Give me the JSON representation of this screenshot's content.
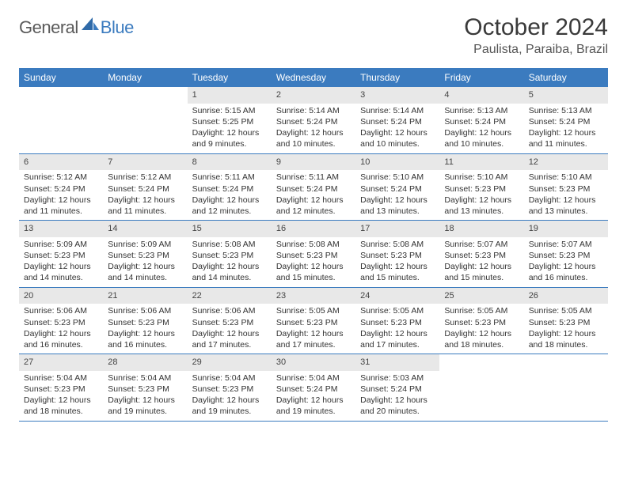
{
  "logo": {
    "general": "General",
    "blue": "Blue"
  },
  "title": "October 2024",
  "location": "Paulista, Paraiba, Brazil",
  "colors": {
    "header_bg": "#3b7bbf",
    "header_text": "#ffffff",
    "daynum_bg": "#e8e8e8",
    "border": "#3b7bbf",
    "body_text": "#333333",
    "logo_gray": "#5a5a5a",
    "logo_blue": "#3b7bbf",
    "page_bg": "#ffffff"
  },
  "dayNames": [
    "Sunday",
    "Monday",
    "Tuesday",
    "Wednesday",
    "Thursday",
    "Friday",
    "Saturday"
  ],
  "weeks": [
    [
      null,
      null,
      {
        "n": "1",
        "sr": "5:15 AM",
        "ss": "5:25 PM",
        "dl": "12 hours and 9 minutes."
      },
      {
        "n": "2",
        "sr": "5:14 AM",
        "ss": "5:24 PM",
        "dl": "12 hours and 10 minutes."
      },
      {
        "n": "3",
        "sr": "5:14 AM",
        "ss": "5:24 PM",
        "dl": "12 hours and 10 minutes."
      },
      {
        "n": "4",
        "sr": "5:13 AM",
        "ss": "5:24 PM",
        "dl": "12 hours and 10 minutes."
      },
      {
        "n": "5",
        "sr": "5:13 AM",
        "ss": "5:24 PM",
        "dl": "12 hours and 11 minutes."
      }
    ],
    [
      {
        "n": "6",
        "sr": "5:12 AM",
        "ss": "5:24 PM",
        "dl": "12 hours and 11 minutes."
      },
      {
        "n": "7",
        "sr": "5:12 AM",
        "ss": "5:24 PM",
        "dl": "12 hours and 11 minutes."
      },
      {
        "n": "8",
        "sr": "5:11 AM",
        "ss": "5:24 PM",
        "dl": "12 hours and 12 minutes."
      },
      {
        "n": "9",
        "sr": "5:11 AM",
        "ss": "5:24 PM",
        "dl": "12 hours and 12 minutes."
      },
      {
        "n": "10",
        "sr": "5:10 AM",
        "ss": "5:24 PM",
        "dl": "12 hours and 13 minutes."
      },
      {
        "n": "11",
        "sr": "5:10 AM",
        "ss": "5:23 PM",
        "dl": "12 hours and 13 minutes."
      },
      {
        "n": "12",
        "sr": "5:10 AM",
        "ss": "5:23 PM",
        "dl": "12 hours and 13 minutes."
      }
    ],
    [
      {
        "n": "13",
        "sr": "5:09 AM",
        "ss": "5:23 PM",
        "dl": "12 hours and 14 minutes."
      },
      {
        "n": "14",
        "sr": "5:09 AM",
        "ss": "5:23 PM",
        "dl": "12 hours and 14 minutes."
      },
      {
        "n": "15",
        "sr": "5:08 AM",
        "ss": "5:23 PM",
        "dl": "12 hours and 14 minutes."
      },
      {
        "n": "16",
        "sr": "5:08 AM",
        "ss": "5:23 PM",
        "dl": "12 hours and 15 minutes."
      },
      {
        "n": "17",
        "sr": "5:08 AM",
        "ss": "5:23 PM",
        "dl": "12 hours and 15 minutes."
      },
      {
        "n": "18",
        "sr": "5:07 AM",
        "ss": "5:23 PM",
        "dl": "12 hours and 15 minutes."
      },
      {
        "n": "19",
        "sr": "5:07 AM",
        "ss": "5:23 PM",
        "dl": "12 hours and 16 minutes."
      }
    ],
    [
      {
        "n": "20",
        "sr": "5:06 AM",
        "ss": "5:23 PM",
        "dl": "12 hours and 16 minutes."
      },
      {
        "n": "21",
        "sr": "5:06 AM",
        "ss": "5:23 PM",
        "dl": "12 hours and 16 minutes."
      },
      {
        "n": "22",
        "sr": "5:06 AM",
        "ss": "5:23 PM",
        "dl": "12 hours and 17 minutes."
      },
      {
        "n": "23",
        "sr": "5:05 AM",
        "ss": "5:23 PM",
        "dl": "12 hours and 17 minutes."
      },
      {
        "n": "24",
        "sr": "5:05 AM",
        "ss": "5:23 PM",
        "dl": "12 hours and 17 minutes."
      },
      {
        "n": "25",
        "sr": "5:05 AM",
        "ss": "5:23 PM",
        "dl": "12 hours and 18 minutes."
      },
      {
        "n": "26",
        "sr": "5:05 AM",
        "ss": "5:23 PM",
        "dl": "12 hours and 18 minutes."
      }
    ],
    [
      {
        "n": "27",
        "sr": "5:04 AM",
        "ss": "5:23 PM",
        "dl": "12 hours and 18 minutes."
      },
      {
        "n": "28",
        "sr": "5:04 AM",
        "ss": "5:23 PM",
        "dl": "12 hours and 19 minutes."
      },
      {
        "n": "29",
        "sr": "5:04 AM",
        "ss": "5:23 PM",
        "dl": "12 hours and 19 minutes."
      },
      {
        "n": "30",
        "sr": "5:04 AM",
        "ss": "5:24 PM",
        "dl": "12 hours and 19 minutes."
      },
      {
        "n": "31",
        "sr": "5:03 AM",
        "ss": "5:24 PM",
        "dl": "12 hours and 20 minutes."
      },
      null,
      null
    ]
  ],
  "labels": {
    "sunrise": "Sunrise:",
    "sunset": "Sunset:",
    "daylight": "Daylight:"
  }
}
